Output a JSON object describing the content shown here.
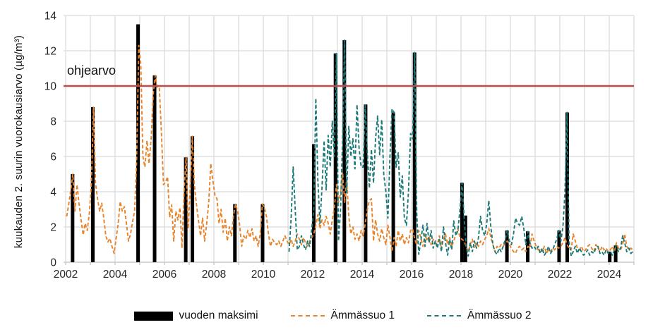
{
  "chart_data": {
    "type": "mixed-bar-line",
    "title": "",
    "y_axis": {
      "title": "kuukauden 2. suurin vuorokausiarvo (µg/m³)",
      "min": 0,
      "max": 14,
      "tick_step": 2,
      "ticks": [
        0,
        2,
        4,
        6,
        8,
        10,
        12,
        14
      ]
    },
    "x_axis": {
      "min_year": 2002,
      "max_year": 2025,
      "tick_label_years": [
        2002,
        2004,
        2006,
        2008,
        2010,
        2012,
        2014,
        2016,
        2018,
        2020,
        2022,
        2024
      ],
      "gridline_years": [
        2002,
        2003,
        2004,
        2005,
        2006,
        2007,
        2008,
        2009,
        2010,
        2011,
        2012,
        2013,
        2014,
        2015,
        2016,
        2017,
        2018,
        2019,
        2020,
        2021,
        2022,
        2023,
        2024,
        2025
      ]
    },
    "grid_color": "#d9d9d9",
    "axis_color": "#bfbfbf",
    "tick_text_color": "#262626",
    "guideline": {
      "label": "ohjearvo",
      "value": 10,
      "color": "#be4b48"
    },
    "bars": {
      "name": "vuoden maksimi",
      "color": "#000000",
      "points": [
        {
          "x": 2002.28,
          "value": 5.0
        },
        {
          "x": 2003.1,
          "value": 8.8
        },
        {
          "x": 2004.93,
          "value": 13.5
        },
        {
          "x": 2005.6,
          "value": 10.6
        },
        {
          "x": 2006.86,
          "value": 5.95
        },
        {
          "x": 2007.13,
          "value": 7.15
        },
        {
          "x": 2008.85,
          "value": 3.3
        },
        {
          "x": 2009.97,
          "value": 3.3
        },
        {
          "x": 2012.04,
          "value": 6.7
        },
        {
          "x": 2012.92,
          "value": 11.85
        },
        {
          "x": 2013.28,
          "value": 12.6
        },
        {
          "x": 2014.14,
          "value": 8.95
        },
        {
          "x": 2015.26,
          "value": 8.5
        },
        {
          "x": 2016.12,
          "value": 11.9
        },
        {
          "x": 2018.04,
          "value": 4.5
        },
        {
          "x": 2018.18,
          "value": 2.65
        },
        {
          "x": 2019.86,
          "value": 1.8
        },
        {
          "x": 2020.7,
          "value": 1.75
        },
        {
          "x": 2021.97,
          "value": 1.8
        },
        {
          "x": 2022.3,
          "value": 8.5
        },
        {
          "x": 2024.02,
          "value": 0.6
        },
        {
          "x": 2024.26,
          "value": 0.95
        }
      ]
    },
    "series": [
      {
        "name": "Ämmässuo 1",
        "color": "#e8832a",
        "dash": "5 3",
        "start_year": 2002,
        "monthly_values": [
          2.6,
          3.3,
          4.1,
          5.0,
          2.9,
          4.4,
          3.3,
          2.4,
          1.55,
          2.2,
          1.8,
          2.8,
          4.5,
          8.8,
          4.5,
          3.6,
          2.9,
          3.35,
          2.5,
          1.5,
          1.15,
          1.35,
          0.9,
          0.5,
          1.35,
          2.2,
          3.45,
          2.9,
          3.15,
          2.2,
          1.2,
          1.6,
          2.3,
          2.9,
          5.8,
          12.3,
          11.2,
          6.0,
          5.4,
          6.9,
          5.6,
          7.0,
          9.5,
          10.6,
          9.9,
          9.9,
          7.4,
          4.4,
          4.55,
          4.85,
          2.55,
          3.25,
          1.2,
          2.9,
          2.4,
          3.1,
          0.8,
          4.0,
          5.95,
          1.9,
          4.2,
          7.15,
          4.4,
          3.3,
          2.4,
          1.5,
          2.5,
          1.2,
          2.2,
          3.4,
          5.6,
          4.6,
          3.8,
          3.6,
          2.2,
          3.0,
          1.7,
          2.5,
          1.2,
          2.0,
          1.5,
          2.6,
          3.3,
          2.9,
          2.1,
          0.9,
          1.5,
          1.3,
          1.8,
          1.4,
          1.9,
          1.2,
          1.5,
          0.9,
          1.6,
          3.3,
          3.1,
          2.6,
          1.6,
          0.9,
          1.3,
          1.1,
          1.0,
          1.2,
          0.9,
          1.2,
          1.5,
          1.2,
          1.0,
          1.3,
          0.9,
          1.2,
          1.6,
          1.3,
          1.0,
          1.4,
          1.1,
          0.9,
          1.2,
          1.4,
          1.6,
          2.1,
          2.7,
          1.9,
          2.4,
          2.1,
          2.6,
          2.2,
          1.6,
          2.4,
          3.1,
          4.4,
          3.4,
          3.9,
          5.1,
          3.4,
          4.7,
          2.6,
          1.6,
          2.0,
          1.3,
          1.6,
          1.2,
          1.8,
          1.5,
          2.2,
          3.0,
          3.5,
          3.6,
          1.2,
          2.4,
          1.6,
          1.2,
          1.9,
          1.4,
          1.0,
          2.1,
          1.4,
          0.6,
          1.4,
          0.9,
          1.8,
          1.2,
          1.6,
          1.0,
          1.4,
          1.1,
          1.8,
          1.9,
          1.3,
          1.0,
          1.8,
          1.4,
          0.9,
          1.6,
          1.2,
          1.5,
          1.0,
          1.3,
          1.1,
          1.0,
          1.5,
          0.8,
          1.3,
          1.6,
          1.0,
          1.4,
          0.9,
          1.2,
          1.6,
          1.9,
          1.4,
          1.3,
          1.2,
          0.9,
          0.6,
          1.0,
          1.3,
          0.8,
          1.1,
          0.9,
          1.2,
          1.0,
          1.3,
          1.5,
          1.9,
          1.4,
          1.0,
          0.6,
          0.9,
          0.8,
          1.0,
          0.9,
          1.1,
          1.2,
          1.0,
          0.8,
          0.6,
          0.5,
          0.8,
          0.9,
          0.7,
          0.8,
          0.6,
          0.9,
          0.8,
          1.6,
          1.2,
          0.9,
          0.7,
          0.8,
          0.6,
          0.9,
          0.5,
          0.7,
          0.6,
          0.8,
          0.7,
          0.9,
          0.8,
          0.9,
          1.1,
          1.4,
          1.0,
          0.8,
          0.7,
          1.6,
          1.2,
          0.8,
          0.7,
          0.9,
          0.6,
          0.7,
          0.9,
          1.0,
          0.8,
          0.6,
          1.0,
          0.8,
          0.6,
          0.9,
          0.7,
          0.8,
          0.6,
          0.7,
          0.9,
          0.6,
          1.1,
          0.8,
          0.7,
          1.0,
          1.6,
          0.9,
          0.7,
          0.8,
          0.7
        ]
      },
      {
        "name": "Ämmässuo 2",
        "color": "#1b7a78",
        "dash": "5 3",
        "start_year": 2011,
        "monthly_values": [
          0.6,
          2.5,
          5.4,
          3.0,
          0.7,
          0.9,
          1.5,
          1.0,
          0.7,
          1.2,
          0.9,
          1.9,
          3.0,
          9.3,
          4.6,
          2.2,
          4.2,
          6.9,
          4.1,
          7.2,
          5.4,
          8.0,
          6.0,
          11.85,
          1.2,
          3.0,
          7.0,
          12.6,
          3.9,
          7.7,
          6.0,
          7.0,
          5.3,
          8.95,
          6.5,
          5.4,
          5.4,
          8.9,
          6.2,
          4.2,
          6.4,
          4.5,
          7.0,
          8.3,
          6.1,
          8.1,
          5.0,
          4.0,
          2.5,
          6.0,
          8.7,
          8.5,
          5.4,
          6.2,
          3.7,
          4.9,
          2.5,
          2.1,
          4.0,
          7.3,
          7.0,
          11.9,
          2.8,
          0.45,
          1.2,
          2.1,
          0.9,
          2.2,
          1.1,
          1.8,
          0.8,
          1.2,
          0.8,
          1.3,
          0.6,
          2.0,
          1.1,
          0.4,
          1.3,
          0.7,
          2.35,
          1.5,
          1.8,
          3.0,
          4.5,
          2.6,
          0.9,
          0.35,
          1.1,
          0.6,
          1.2,
          0.8,
          1.4,
          2.6,
          1.8,
          1.5,
          2.2,
          3.5,
          2.0,
          1.0,
          0.6,
          0.45,
          0.8,
          0.6,
          0.9,
          1.3,
          1.8,
          1.2,
          1.0,
          1.6,
          2.5,
          2.2,
          2.1,
          2.6,
          1.9,
          1.0,
          1.75,
          1.1,
          0.8,
          0.9,
          0.7,
          0.9,
          0.5,
          0.8,
          0.4,
          0.6,
          0.9,
          0.5,
          0.7,
          1.0,
          1.3,
          1.8,
          1.2,
          2.0,
          4.0,
          8.5,
          1.2,
          0.35,
          0.6,
          0.9,
          0.5,
          0.8,
          0.6,
          0.4,
          0.5,
          0.7,
          0.4,
          0.6,
          0.5,
          0.8,
          0.9,
          0.5,
          0.6,
          0.4,
          0.7,
          0.5,
          0.6,
          0.4,
          0.7,
          0.95,
          0.6,
          0.8,
          1.5,
          1.1,
          0.6,
          0.8,
          0.5,
          0.6
        ]
      }
    ],
    "legend": {
      "position": "bottom"
    }
  }
}
